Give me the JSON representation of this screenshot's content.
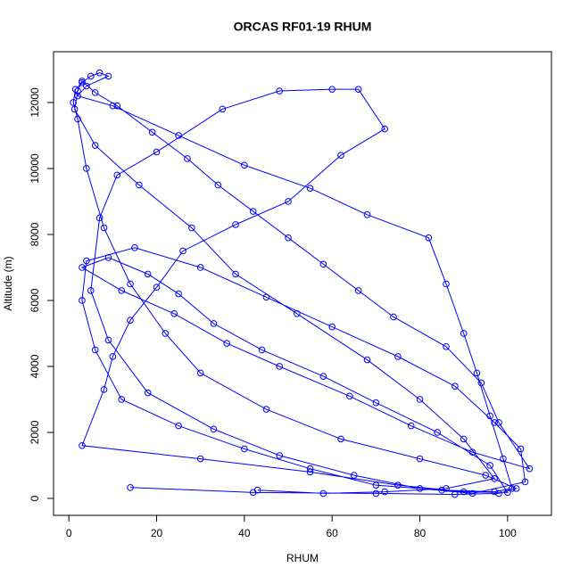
{
  "chart_data": {
    "type": "line",
    "title": "ORCAS RF01-19 RHUM",
    "x_label": "RHUM",
    "y_label": "Altitude (m)",
    "color": "#0000ff",
    "xlim": [
      -3.5,
      110
    ],
    "ylim": [
      -514,
      13540
    ],
    "xticks": [
      0,
      20,
      40,
      60,
      80,
      100
    ],
    "yticks": [
      0,
      2000,
      4000,
      6000,
      8000,
      10000,
      12000
    ],
    "x": [
      14,
      42,
      70,
      88,
      98,
      102,
      95,
      80,
      62,
      45,
      30,
      22,
      14,
      8,
      4,
      2,
      1,
      1.5,
      3,
      5,
      7,
      9,
      4,
      2,
      10,
      25,
      40,
      55,
      68,
      82,
      86,
      90,
      93,
      96,
      99,
      101,
      97,
      85,
      70,
      55,
      40,
      25,
      12,
      6,
      3,
      4,
      15,
      30,
      45,
      60,
      75,
      88,
      97,
      103,
      104,
      92,
      80,
      65,
      48,
      33,
      18,
      9,
      5,
      7,
      11,
      20,
      35,
      48,
      60,
      66,
      72,
      62,
      50,
      38,
      26,
      20,
      14,
      10,
      8,
      3,
      30,
      55,
      75,
      90,
      100,
      96,
      84,
      70,
      58,
      44,
      33,
      25,
      18,
      9,
      3,
      12,
      24,
      36,
      48,
      64,
      78,
      92,
      105,
      98,
      94,
      86,
      74,
      66,
      58,
      50,
      42,
      34,
      27,
      19,
      11,
      6,
      3,
      2,
      1.3,
      6,
      16,
      28,
      38,
      52,
      68,
      80,
      90,
      97,
      86,
      72,
      58,
      43
    ],
    "series": [
      {
        "name": "RHUM",
        "values": [
          330,
          180,
          150,
          120,
          150,
          300,
          700,
          1200,
          1800,
          2700,
          3800,
          5000,
          6500,
          8200,
          10000,
          11500,
          12000,
          12400,
          12600,
          12800,
          12900,
          12800,
          12500,
          12200,
          11900,
          11000,
          10100,
          9400,
          8600,
          7900,
          6500,
          5000,
          3800,
          2500,
          1200,
          300,
          200,
          250,
          400,
          900,
          1500,
          2200,
          3000,
          4500,
          6000,
          7200,
          7600,
          7000,
          6100,
          5200,
          4300,
          3400,
          2300,
          1500,
          500,
          150,
          300,
          700,
          1300,
          2100,
          3200,
          4800,
          6300,
          8500,
          9800,
          10500,
          11800,
          12350,
          12400,
          12400,
          11200,
          10400,
          9000,
          8300,
          7500,
          6400,
          5400,
          4300,
          3300,
          1600,
          1200,
          800,
          400,
          200,
          180,
          1000,
          2000,
          2900,
          3700,
          4500,
          5300,
          6200,
          6800,
          7300,
          7000,
          6300,
          5600,
          4700,
          4000,
          3100,
          2200,
          1400,
          900,
          2300,
          3500,
          4600,
          5500,
          6300,
          7100,
          7900,
          8700,
          9500,
          10300,
          11100,
          11900,
          12300,
          12650,
          12350,
          11800,
          10700,
          9500,
          8200,
          6800,
          5600,
          4200,
          3000,
          1800,
          600,
          300,
          200,
          150,
          250
        ]
      }
    ]
  }
}
